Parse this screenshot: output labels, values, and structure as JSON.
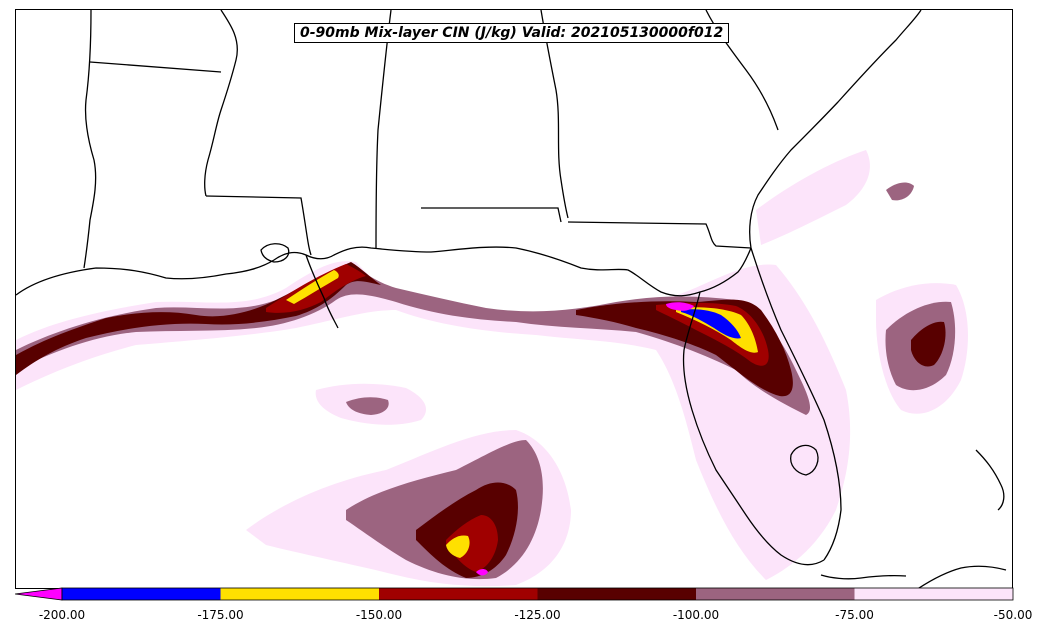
{
  "title": "0-90mb Mix-layer CIN (J/kg) Valid: 202105130000f012",
  "colorbar": {
    "extend": "min",
    "extend_color": "#ff00ff",
    "bins": [
      {
        "from": -200,
        "to": -175,
        "color": "#0000ff"
      },
      {
        "from": -175,
        "to": -150,
        "color": "#ffe000"
      },
      {
        "from": -150,
        "to": -125,
        "color": "#a00000"
      },
      {
        "from": -125,
        "to": -100,
        "color": "#580000"
      },
      {
        "from": -100,
        "to": -75,
        "color": "#9c6480"
      },
      {
        "from": -75,
        "to": -50,
        "color": "#fce4fa"
      }
    ],
    "tick_labels": [
      "-200.00",
      "-175.00",
      "-150.00",
      "-125.00",
      "-100.00",
      "-75.00",
      "-50.00"
    ]
  },
  "colors": {
    "borders": "#000000",
    "background": "#ffffff"
  }
}
